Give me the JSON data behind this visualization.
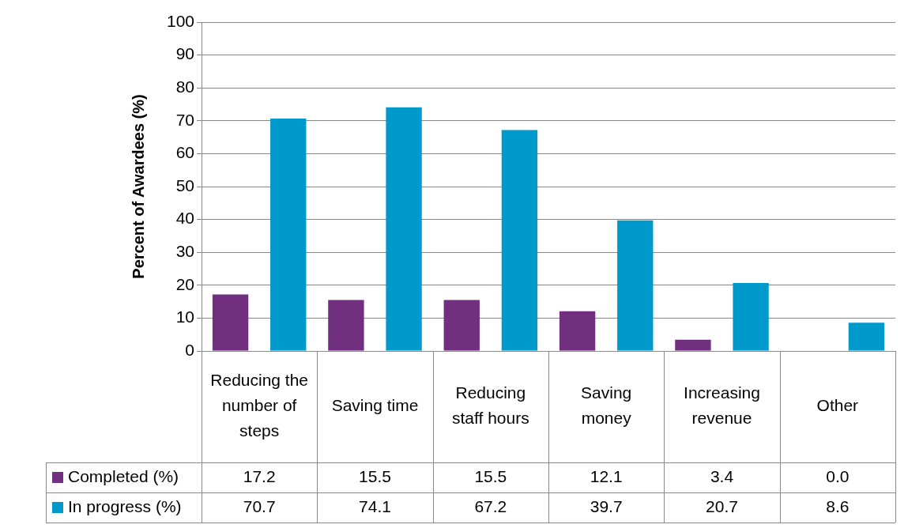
{
  "chart_data": {
    "type": "bar",
    "ylabel": "Percent of Awardees (%)",
    "categories": [
      "Reducing the number of steps",
      "Saving time",
      "Reducing staff hours",
      "Saving money",
      "Increasing revenue",
      "Other"
    ],
    "series": [
      {
        "name": "Completed (%)",
        "color": "#70307f",
        "values": [
          17.2,
          15.5,
          15.5,
          12.1,
          3.4,
          0.0
        ],
        "value_labels": [
          "17.2",
          "15.5",
          "15.5",
          "12.1",
          "3.4",
          "0.0"
        ]
      },
      {
        "name": "In progress (%)",
        "color": "#0099cc",
        "values": [
          70.7,
          74.1,
          67.2,
          39.7,
          20.7,
          8.6
        ],
        "value_labels": [
          "70.7",
          "74.1",
          "67.2",
          "39.7",
          "20.7",
          "8.6"
        ]
      }
    ],
    "ylim": [
      0,
      100
    ],
    "yticks": [
      0,
      10,
      20,
      30,
      40,
      50,
      60,
      70,
      80,
      90,
      100
    ],
    "grid": "y",
    "legend": "bottom left"
  }
}
